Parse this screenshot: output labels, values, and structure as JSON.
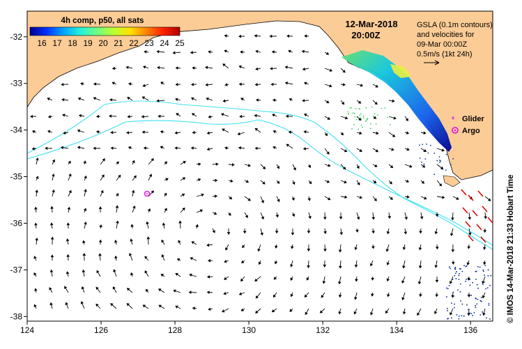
{
  "map": {
    "title_date": "12-Mar-2018",
    "title_time": "20:00Z",
    "colorbar": {
      "label": "4h comp, p50, all sats",
      "ticks": [
        "16",
        "17",
        "18",
        "19",
        "20",
        "21",
        "22",
        "23",
        "24",
        "25"
      ],
      "colors": [
        "#00008f",
        "#0030ff",
        "#00a0ff",
        "#20f0e0",
        "#70ff80",
        "#c0ff30",
        "#ffe000",
        "#ff8000",
        "#ff2000",
        "#b00000"
      ]
    },
    "gsla_note": [
      "GSLA (0.1m contours)",
      "and velocities for",
      "09-Mar 00:00Z",
      "0.5m/s (1kt 24h)"
    ],
    "legend": {
      "glider": "Glider",
      "argo": "Argo",
      "glider_color": "#e040e0",
      "argo_color": "#e020e0"
    },
    "side_caption": "©  IMOS 14-Mar-2018 21:33 Hobart Time",
    "axes": {
      "x_ticks": [
        "124",
        "126",
        "128",
        "130",
        "132",
        "134",
        "136"
      ],
      "y_ticks": [
        "-32",
        "-33",
        "-34",
        "-35",
        "-36",
        "-37",
        "-38"
      ],
      "x_range": [
        124,
        136.6
      ],
      "y_range": [
        -38.1,
        -31.45
      ]
    },
    "colors": {
      "land": "#fccc96",
      "contour": "#40e0f0",
      "arrow": "#000000"
    }
  }
}
